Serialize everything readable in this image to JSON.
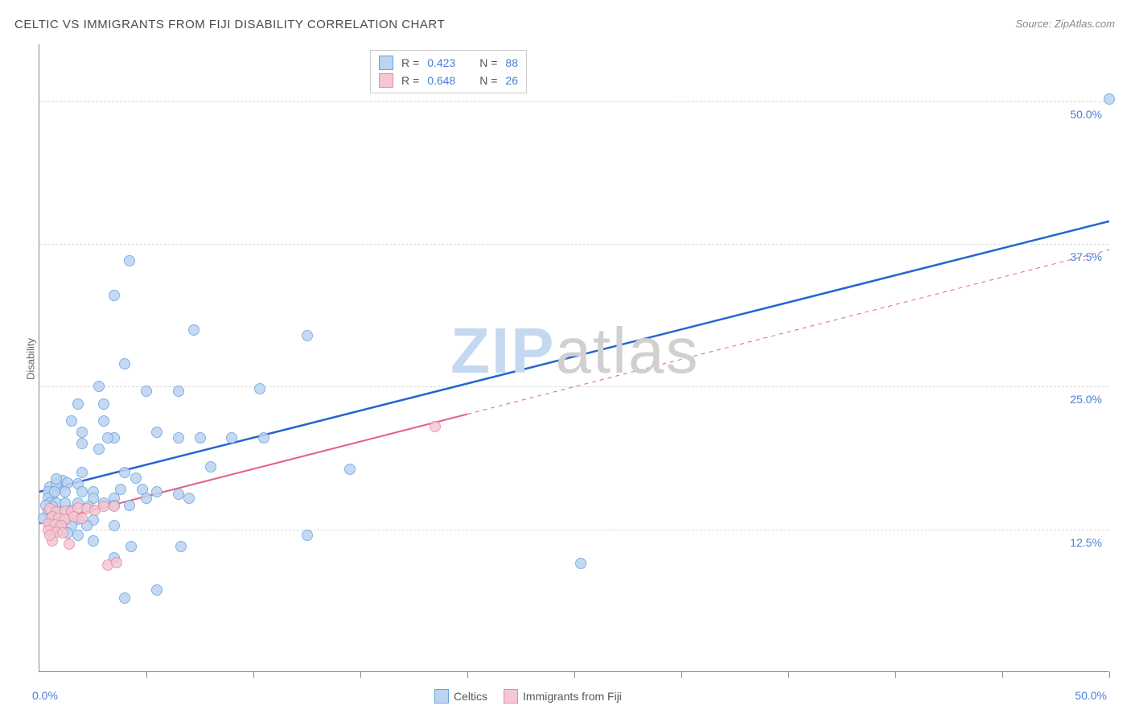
{
  "title": "CELTIC VS IMMIGRANTS FROM FIJI DISABILITY CORRELATION CHART",
  "source": "Source: ZipAtlas.com",
  "ylabel": "Disability",
  "watermark_zip": "ZIP",
  "watermark_atlas": "atlas",
  "watermark_zip_color": "#c4d8f0",
  "watermark_atlas_color": "#d0d0d0",
  "chart": {
    "type": "scatter",
    "xlim": [
      0,
      50
    ],
    "ylim": [
      0,
      55
    ],
    "ygrid": [
      12.5,
      25.0,
      37.5,
      50.0
    ],
    "ytick_labels": [
      "12.5%",
      "25.0%",
      "37.5%",
      "50.0%"
    ],
    "x_origin_label": "0.0%",
    "x_max_label": "50.0%",
    "xticks": [
      5,
      10,
      15,
      20,
      25,
      30,
      35,
      40,
      45,
      50
    ],
    "background": "#ffffff",
    "grid_color": "#d8d8d8",
    "axis_color": "#888888",
    "label_color": "#4a7fd6",
    "series": [
      {
        "name": "Celtics",
        "fill": "#bcd4f0",
        "stroke": "#6aa3e0",
        "marker_size": 14,
        "trend": {
          "color": "#2466d1",
          "width": 2.5,
          "x1": 0,
          "y1": 15.8,
          "x2": 50,
          "y2": 39.5,
          "dashed_from": null
        },
        "points": [
          [
            50,
            50.2
          ],
          [
            4.2,
            36.0
          ],
          [
            3.5,
            33.0
          ],
          [
            7.2,
            30.0
          ],
          [
            12.5,
            29.5
          ],
          [
            4.0,
            27.0
          ],
          [
            2.8,
            25.0
          ],
          [
            1.8,
            23.5
          ],
          [
            3.0,
            23.5
          ],
          [
            5.0,
            24.6
          ],
          [
            6.5,
            24.6
          ],
          [
            10.3,
            24.8
          ],
          [
            1.5,
            22.0
          ],
          [
            3.0,
            22.0
          ],
          [
            2.0,
            21.0
          ],
          [
            5.5,
            21.0
          ],
          [
            3.5,
            20.5
          ],
          [
            3.2,
            20.5
          ],
          [
            6.5,
            20.5
          ],
          [
            7.5,
            20.5
          ],
          [
            9.0,
            20.5
          ],
          [
            10.5,
            20.5
          ],
          [
            2.8,
            19.5
          ],
          [
            2.0,
            20.0
          ],
          [
            8.0,
            18.0
          ],
          [
            14.5,
            17.8
          ],
          [
            4.0,
            17.5
          ],
          [
            1.8,
            16.5
          ],
          [
            4.5,
            17.0
          ],
          [
            2.0,
            15.8
          ],
          [
            2.5,
            15.8
          ],
          [
            0.8,
            16.0
          ],
          [
            1.0,
            16.2
          ],
          [
            0.5,
            16.2
          ],
          [
            1.1,
            16.8
          ],
          [
            1.3,
            16.6
          ],
          [
            2.0,
            17.5
          ],
          [
            0.8,
            16.5
          ],
          [
            3.8,
            16.0
          ],
          [
            4.8,
            16.0
          ],
          [
            5.5,
            15.8
          ],
          [
            6.5,
            15.6
          ],
          [
            7.0,
            15.2
          ],
          [
            2.5,
            15.2
          ],
          [
            3.5,
            15.2
          ],
          [
            5.0,
            15.2
          ],
          [
            0.6,
            15.5
          ],
          [
            0.4,
            15.8
          ],
          [
            0.4,
            15.2
          ],
          [
            0.7,
            15.8
          ],
          [
            1.2,
            15.8
          ],
          [
            0.5,
            14.8
          ],
          [
            0.8,
            14.8
          ],
          [
            1.2,
            14.8
          ],
          [
            1.8,
            14.8
          ],
          [
            3.0,
            14.8
          ],
          [
            3.5,
            14.6
          ],
          [
            4.2,
            14.6
          ],
          [
            2.3,
            14.5
          ],
          [
            0.6,
            14.5
          ],
          [
            0.3,
            14.6
          ],
          [
            1.5,
            14.2
          ],
          [
            0.7,
            14.0
          ],
          [
            0.4,
            14.0
          ],
          [
            1.0,
            14.0
          ],
          [
            0.5,
            13.5
          ],
          [
            1.8,
            13.4
          ],
          [
            2.5,
            13.3
          ],
          [
            1.3,
            13.3
          ],
          [
            0.5,
            13.0
          ],
          [
            0.2,
            13.5
          ],
          [
            0.8,
            13.0
          ],
          [
            1.5,
            12.8
          ],
          [
            2.2,
            12.8
          ],
          [
            3.5,
            12.8
          ],
          [
            12.5,
            12.0
          ],
          [
            0.6,
            12.3
          ],
          [
            1.0,
            12.4
          ],
          [
            1.3,
            12.2
          ],
          [
            1.8,
            12.0
          ],
          [
            2.5,
            11.5
          ],
          [
            4.3,
            11.0
          ],
          [
            6.6,
            11.0
          ],
          [
            3.5,
            10.0
          ],
          [
            25.3,
            9.5
          ],
          [
            5.5,
            7.2
          ],
          [
            4.0,
            6.5
          ],
          [
            0.8,
            16.9
          ]
        ]
      },
      {
        "name": "Immigrants from Fiji",
        "fill": "#f5c7d2",
        "stroke": "#e88ba5",
        "marker_size": 14,
        "trend": {
          "color": "#e85f87",
          "width": 2,
          "x1": 0,
          "y1": 13.0,
          "x2": 50,
          "y2": 37.0,
          "dashed_from": 20.0
        },
        "points": [
          [
            18.5,
            21.5
          ],
          [
            0.5,
            14.3
          ],
          [
            0.8,
            14.0
          ],
          [
            1.2,
            14.1
          ],
          [
            1.5,
            14.0
          ],
          [
            1.8,
            14.4
          ],
          [
            2.2,
            14.3
          ],
          [
            2.6,
            14.2
          ],
          [
            3.0,
            14.5
          ],
          [
            3.5,
            14.5
          ],
          [
            0.6,
            13.6
          ],
          [
            0.9,
            13.5
          ],
          [
            1.2,
            13.4
          ],
          [
            1.6,
            13.6
          ],
          [
            2.0,
            13.5
          ],
          [
            0.4,
            13.0
          ],
          [
            0.7,
            12.9
          ],
          [
            1.0,
            12.8
          ],
          [
            0.4,
            12.4
          ],
          [
            0.8,
            12.3
          ],
          [
            1.1,
            12.2
          ],
          [
            0.6,
            11.5
          ],
          [
            1.4,
            11.2
          ],
          [
            3.2,
            9.4
          ],
          [
            3.6,
            9.6
          ],
          [
            0.5,
            12.0
          ]
        ]
      }
    ]
  },
  "legend_top": {
    "rows": [
      {
        "swatch_fill": "#bcd4f0",
        "swatch_stroke": "#6aa3e0",
        "r_label": "R =",
        "r_val": "0.423",
        "n_label": "N =",
        "n_val": "88"
      },
      {
        "swatch_fill": "#f5c7d2",
        "swatch_stroke": "#e88ba5",
        "r_label": "R =",
        "r_val": "0.648",
        "n_label": "N =",
        "n_val": "26"
      }
    ]
  },
  "legend_bottom": {
    "items": [
      {
        "swatch_fill": "#bcd4f0",
        "swatch_stroke": "#6aa3e0",
        "label": "Celtics"
      },
      {
        "swatch_fill": "#f5c7d2",
        "swatch_stroke": "#e88ba5",
        "label": "Immigrants from Fiji"
      }
    ]
  }
}
